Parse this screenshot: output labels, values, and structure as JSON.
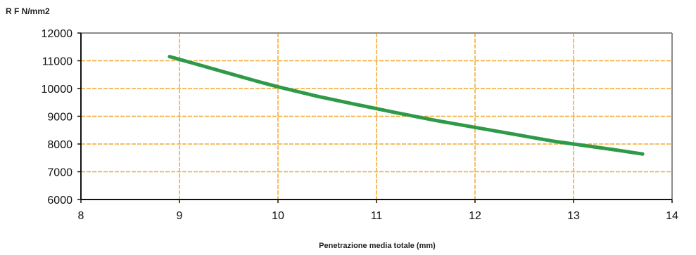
{
  "chart_data": {
    "type": "line",
    "title": "",
    "ylabel": "R F N/mm2",
    "xlabel": "Penetrazione media totale (mm)",
    "xlim": [
      8,
      14
    ],
    "ylim": [
      6000,
      12000
    ],
    "xticks": [
      8,
      9,
      10,
      11,
      12,
      13,
      14
    ],
    "yticks": [
      6000,
      7000,
      8000,
      9000,
      10000,
      11000,
      12000
    ],
    "xtick_labels": [
      "8",
      "9",
      "10",
      "11",
      "12",
      "13",
      "14"
    ],
    "ytick_labels": [
      "6000",
      "7000",
      "8000",
      "9000",
      "10000",
      "11000",
      "12000"
    ],
    "grid": true,
    "grid_color": "#F0A830",
    "line_color": "#2E9A48",
    "series": [
      {
        "x": [
          8.9,
          9.2,
          9.5,
          9.8,
          10.0,
          10.4,
          10.8,
          11.2,
          11.6,
          12.0,
          12.4,
          12.8,
          13.0,
          13.4,
          13.7
        ],
        "values": [
          11150,
          10850,
          10550,
          10250,
          10060,
          9720,
          9420,
          9130,
          8850,
          8600,
          8350,
          8100,
          8000,
          7800,
          7640
        ]
      }
    ]
  }
}
